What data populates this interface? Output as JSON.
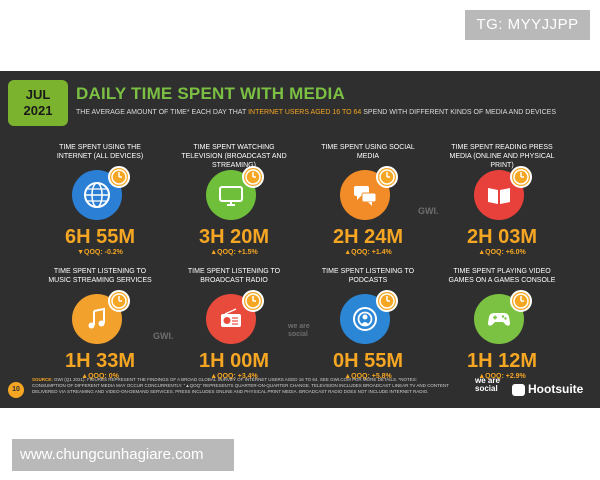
{
  "top_badge": "TG: MYYJJPP",
  "bottom_badge": "www.chungcunhagiare.com",
  "slide": {
    "date_month": "JUL",
    "date_year": "2021",
    "title": "DAILY TIME SPENT WITH MEDIA",
    "subtitle_pre": "THE AVERAGE AMOUNT OF TIME* EACH DAY THAT ",
    "subtitle_highlight": "INTERNET USERS AGED 16 TO 64",
    "subtitle_post": " SPEND WITH DIFFERENT KINDS OF MEDIA AND DEVICES",
    "tiles": [
      {
        "label": "TIME SPENT USING THE INTERNET (ALL DEVICES)",
        "value": "6H 55M",
        "qoq": "▼QOQ: -0.2%",
        "icon": "globe-icon",
        "color": "#2b7fd4"
      },
      {
        "label": "TIME SPENT WATCHING TELEVISION (BROADCAST AND STREAMING)",
        "value": "3H 20M",
        "qoq": "▲QOQ: +1.5%",
        "icon": "television-icon",
        "color": "#6fbf3a"
      },
      {
        "label": "TIME SPENT USING SOCIAL MEDIA",
        "value": "2H 24M",
        "qoq": "▲QOQ: +1.4%",
        "icon": "chat-bubbles-icon",
        "color": "#f28c28"
      },
      {
        "label": "TIME SPENT READING PRESS MEDIA (ONLINE AND PHYSICAL PRINT)",
        "value": "2H 03M",
        "qoq": "▲QOQ: +6.0%",
        "icon": "open-book-icon",
        "color": "#e8413c"
      },
      {
        "label": "TIME SPENT LISTENING TO MUSIC STREAMING SERVICES",
        "value": "1H 33M",
        "qoq": "▲QOQ: 0%",
        "icon": "music-note-icon",
        "color": "#f2a12c"
      },
      {
        "label": "TIME SPENT LISTENING TO BROADCAST RADIO",
        "value": "1H 00M",
        "qoq": "▲QOQ: +3.4%",
        "icon": "radio-icon",
        "color": "#e84a3c"
      },
      {
        "label": "TIME SPENT LISTENING TO PODCASTS",
        "value": "0H 55M",
        "qoq": "▲QOQ: +5.8%",
        "icon": "podcast-icon",
        "color": "#2c86d6"
      },
      {
        "label": "TIME SPENT PLAYING VIDEO GAMES ON A GAMES CONSOLE",
        "value": "1H 12M",
        "qoq": "▲QOQ: +2.9%",
        "icon": "gamepad-icon",
        "color": "#7cc242"
      }
    ],
    "watermarks": [
      "GWI.",
      "GWI.",
      "we are social"
    ],
    "footer_source_label": "SOURCE:",
    "footer_text": "GWI (Q1 2021). FIGURES REPRESENT THE FINDINGS OF A BROAD GLOBAL SURVEY OF INTERNET USERS AGED 16 TO 64. SEE GWI.COM FOR MORE DETAILS. *NOTES: CONSUMPTION OF DIFFERENT MEDIA MAY OCCUR CONCURRENTLY. \"▲QOQ\" REPRESENTS QUARTER-ON-QUARTER CHANGE. TELEVISION INCLUDES BROADCAST LINEAR TV AND CONTENT DELIVERED VIA STREAMING AND VIDEO-ON-DEMAND SERVICES. PRESS INCLUDES ONLINE AND PHYSICAL PRINT MEDIA. BROADCAST RADIO DOES NOT INCLUDE INTERNET RADIO.",
    "page_number": "10",
    "brand_left": "we are social",
    "brand_right": "Hootsuite"
  }
}
